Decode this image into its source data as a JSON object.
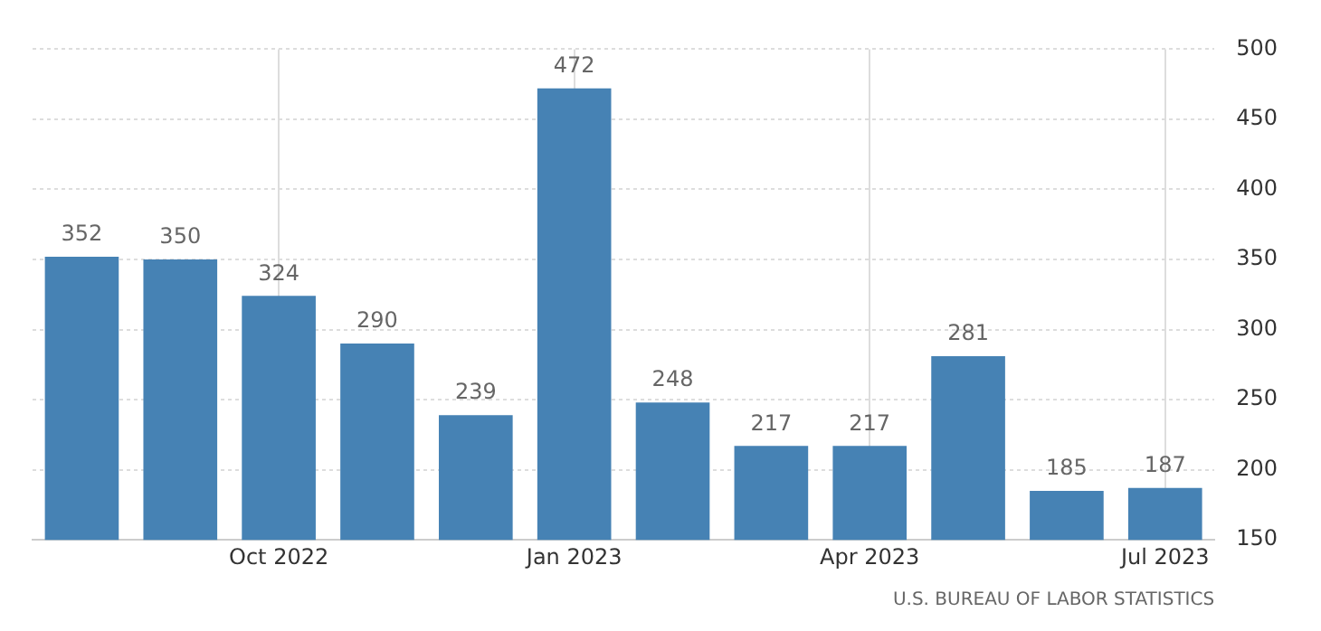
{
  "chart_data": {
    "type": "bar",
    "categories": [
      null,
      null,
      "Oct 2022",
      null,
      null,
      "Jan 2023",
      null,
      null,
      "Apr 2023",
      null,
      null,
      "Jul 2023"
    ],
    "values": [
      352,
      350,
      324,
      290,
      239,
      472,
      248,
      217,
      217,
      281,
      185,
      187
    ],
    "color": "#4682b4",
    "ylim": [
      150,
      500
    ],
    "yticks": [
      150,
      200,
      250,
      300,
      350,
      400,
      450,
      500
    ],
    "grid": true,
    "data_labels": true,
    "annotations": [
      "U.S. BUREAU OF LABOR STATISTICS"
    ]
  }
}
